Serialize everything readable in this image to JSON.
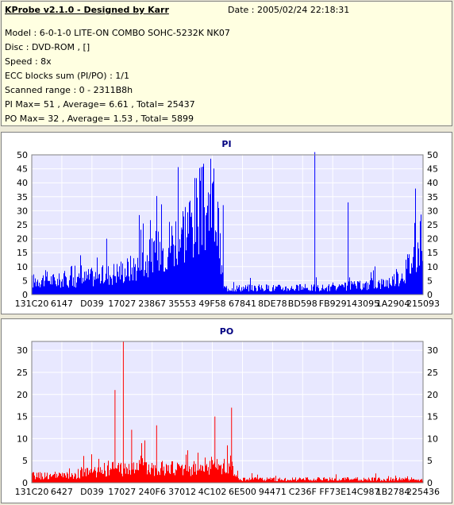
{
  "header": {
    "title": "KProbe v2.1.0 - Designed by Karr",
    "date": "Date : 2005/02/24 22:18:31",
    "lines": [
      "Model : 6-0-1-0 LITE-ON COMBO SOHC-5232K NK07",
      "Disc : DVD-ROM ,  []",
      "Speed : 8x",
      "ECC blocks sum (PI/PO) : 1/1",
      "Scanned range : 0 - 2311B8h",
      "PI Max= 51 , Average= 6.61 , Total= 25437",
      "PO Max= 32 , Average= 1.53 , Total= 5899"
    ]
  },
  "colors": {
    "plot_bg": "#e8e8ff",
    "grid": "#ffffff",
    "pi_series": "#0000ff",
    "po_series": "#ff0000",
    "title_color": "#000080",
    "info_bg": "#ffffe1"
  },
  "chart_data": [
    {
      "type": "bar",
      "title": "PI",
      "ylim": [
        0,
        50
      ],
      "yticks": [
        0,
        5,
        10,
        15,
        20,
        25,
        30,
        35,
        40,
        45,
        50
      ],
      "xtick_labels": [
        "131C20",
        "6147",
        "D039",
        "17027",
        "23867",
        "35553",
        "49F58",
        "67841",
        "8DE78",
        "BD598",
        "FB929",
        "143095",
        "1A2904",
        "215093"
      ],
      "grid": true,
      "series": [
        {
          "color": "#0000ff",
          "profile": [
            6,
            7,
            7,
            6,
            7,
            6,
            7,
            8,
            8,
            9,
            10,
            11,
            12,
            14,
            16,
            19,
            22,
            25,
            29,
            33,
            37,
            39,
            41,
            3,
            3,
            3,
            3,
            3,
            3,
            3,
            3,
            3,
            3,
            3,
            3,
            3,
            3,
            3,
            4,
            4,
            4,
            5,
            5,
            6,
            8,
            12,
            18,
            26
          ],
          "peaks": [
            [
              34,
              51
            ],
            [
              23,
              32
            ],
            [
              9,
              20
            ],
            [
              18,
              24
            ],
            [
              15,
              19
            ],
            [
              38,
              33
            ]
          ]
        }
      ]
    },
    {
      "type": "bar",
      "title": "PO",
      "ylim": [
        0,
        32
      ],
      "yticks": [
        0,
        5,
        10,
        15,
        20,
        25,
        30
      ],
      "xtick_labels": [
        "131C20",
        "6427",
        "D039",
        "17027",
        "240F6",
        "37012",
        "4C102",
        "6E500",
        "94471",
        "C236F",
        "FF73E",
        "14C987",
        "1B2784",
        "225436"
      ],
      "grid": true,
      "series": [
        {
          "color": "#ff0000",
          "profile": [
            2,
            2,
            2,
            2,
            2,
            2,
            3,
            3,
            3,
            4,
            4,
            4,
            4,
            5,
            5,
            4,
            4,
            4,
            4,
            4,
            4,
            5,
            5,
            5,
            5,
            1,
            1,
            1,
            1,
            1,
            1,
            1,
            1,
            1,
            1,
            1,
            1,
            1,
            1,
            1,
            1,
            1,
            1,
            1,
            1,
            1,
            1,
            1
          ],
          "peaks": [
            [
              11,
              32
            ],
            [
              10,
              21
            ],
            [
              24,
              17
            ],
            [
              12,
              12
            ],
            [
              15,
              13
            ],
            [
              22,
              15
            ]
          ]
        }
      ]
    }
  ]
}
